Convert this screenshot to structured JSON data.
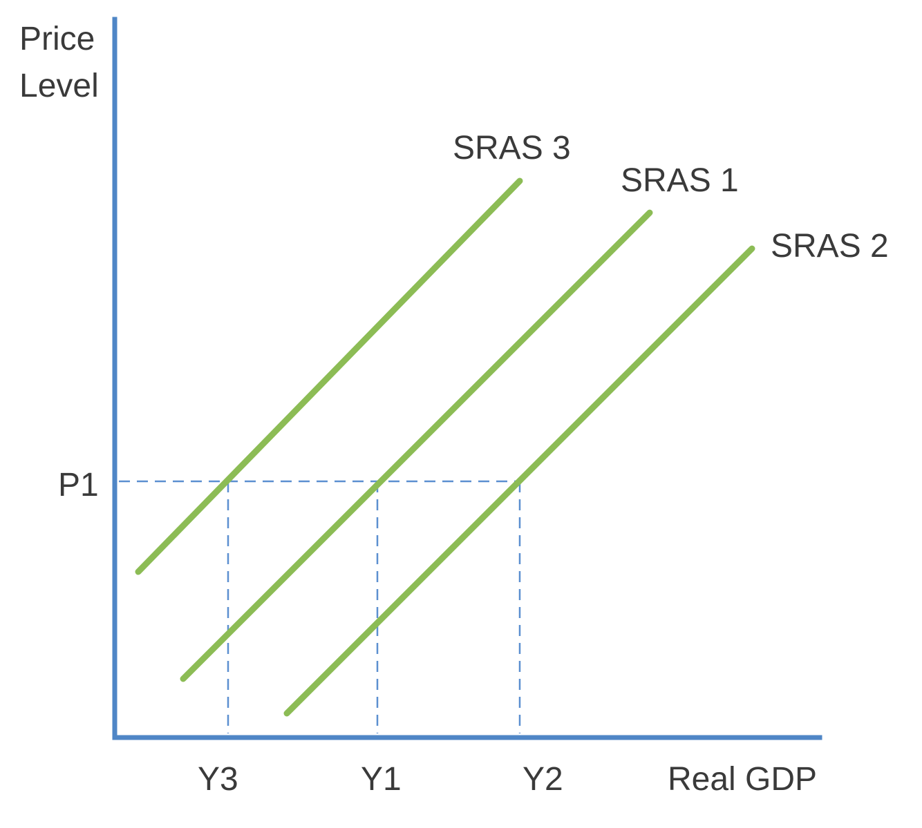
{
  "axes": {
    "y_label_line1": "Price",
    "y_label_line2": "Level",
    "x_label": "Real GDP"
  },
  "price_marker": "P1",
  "output_markers": [
    "Y3",
    "Y1",
    "Y2"
  ],
  "curves": [
    {
      "name": "SRAS 3"
    },
    {
      "name": "SRAS 1"
    },
    {
      "name": "SRAS 2"
    }
  ],
  "colors": {
    "axis": "#4f86c6",
    "curve": "#8cbc55",
    "guide": "#5b8fd0",
    "text": "#3a3a3a"
  }
}
